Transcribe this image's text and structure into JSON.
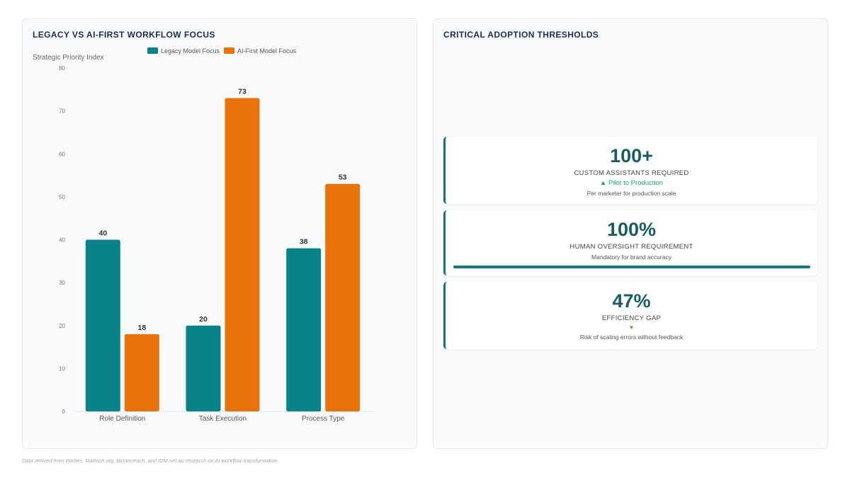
{
  "chart_panel": {
    "title": "LEGACY VS AI-FIRST WORKFLOW FOCUS"
  },
  "chart_data": {
    "type": "bar",
    "title": "LEGACY VS AI-FIRST WORKFLOW FOCUS",
    "ylabel": "Strategic Priority Index",
    "xlabel": "",
    "ylim": [
      0,
      80
    ],
    "yticks": [
      0,
      10,
      20,
      30,
      40,
      50,
      60,
      70,
      80
    ],
    "categories": [
      "Role Definition",
      "Task Execution",
      "Process Type"
    ],
    "series": [
      {
        "name": "Legacy Model Focus",
        "color": "#0a828a",
        "values": [
          40,
          20,
          38
        ]
      },
      {
        "name": "AI-First Model Focus",
        "color": "#e8730a",
        "values": [
          18,
          73,
          53
        ]
      }
    ],
    "legend": "top-center",
    "grid": false,
    "data_labels": true
  },
  "kpi_panel": {
    "title": "CRITICAL ADOPTION THRESHOLDS",
    "cards": [
      {
        "value": "100+",
        "label": "CUSTOM ASSISTANTS REQUIRED",
        "trend": "▲ Pilot to Production",
        "description": "Per marketer for production scale"
      },
      {
        "value": "100%",
        "label": "HUMAN OVERSIGHT REQUIREMENT",
        "description": "Mandatory for brand accuracy",
        "progress": 1.0
      },
      {
        "value": "47%",
        "label": "EFFICIENCY GAP",
        "trend": "▼",
        "description": "Risk of scaling errors without feedback"
      }
    ]
  },
  "footer": "Data derived from Forbes, Martech.org, Bloomreach, and IDM.net.au research on AI workflow transformation.",
  "colors": {
    "accent": "#16746f",
    "title": "#1d2a5b",
    "trend_up": "#13a57a",
    "trend_down": "#e05a4a"
  }
}
